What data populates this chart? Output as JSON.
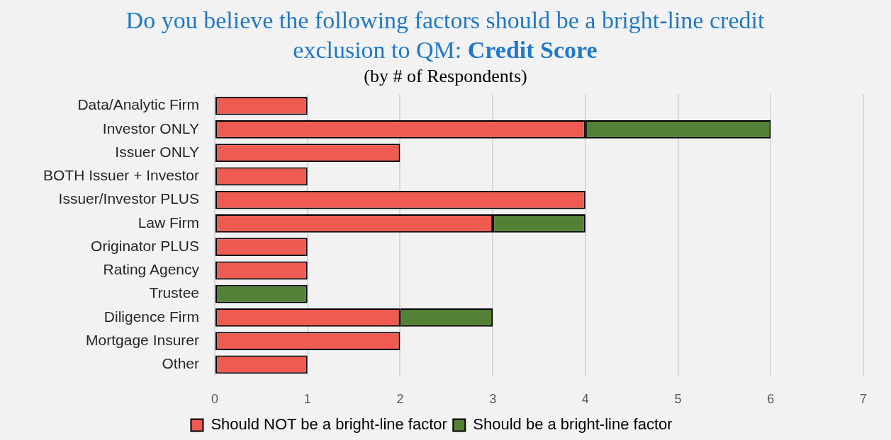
{
  "chart_data": {
    "type": "bar",
    "orientation": "horizontal",
    "stacked": true,
    "title": "Do you believe the following factors should be a bright-line credit exclusion to QM: Credit Score",
    "subtitle": "(by # of Respondents)",
    "categories": [
      "Data/Analytic Firm",
      "Investor ONLY",
      "Issuer ONLY",
      "BOTH Issuer + Investor",
      "Issuer/Investor PLUS",
      "Law Firm",
      "Originator PLUS",
      "Rating Agency",
      "Trustee",
      "Diligence Firm",
      "Mortgage Insurer",
      "Other"
    ],
    "series": [
      {
        "name": "Should NOT be a bright-line factor",
        "color": "#ef5b50",
        "values": [
          1,
          4,
          2,
          1,
          4,
          3,
          1,
          1,
          null,
          2,
          2,
          1
        ]
      },
      {
        "name": "Should be a bright-line factor",
        "color": "#538135",
        "values": [
          null,
          2,
          null,
          null,
          null,
          1,
          null,
          null,
          1,
          1,
          null,
          null
        ]
      }
    ],
    "xlim": [
      0,
      7
    ],
    "xticks": [
      0,
      1,
      2,
      3,
      4,
      5,
      6,
      7
    ],
    "grid": "x",
    "legend": "bottom"
  }
}
